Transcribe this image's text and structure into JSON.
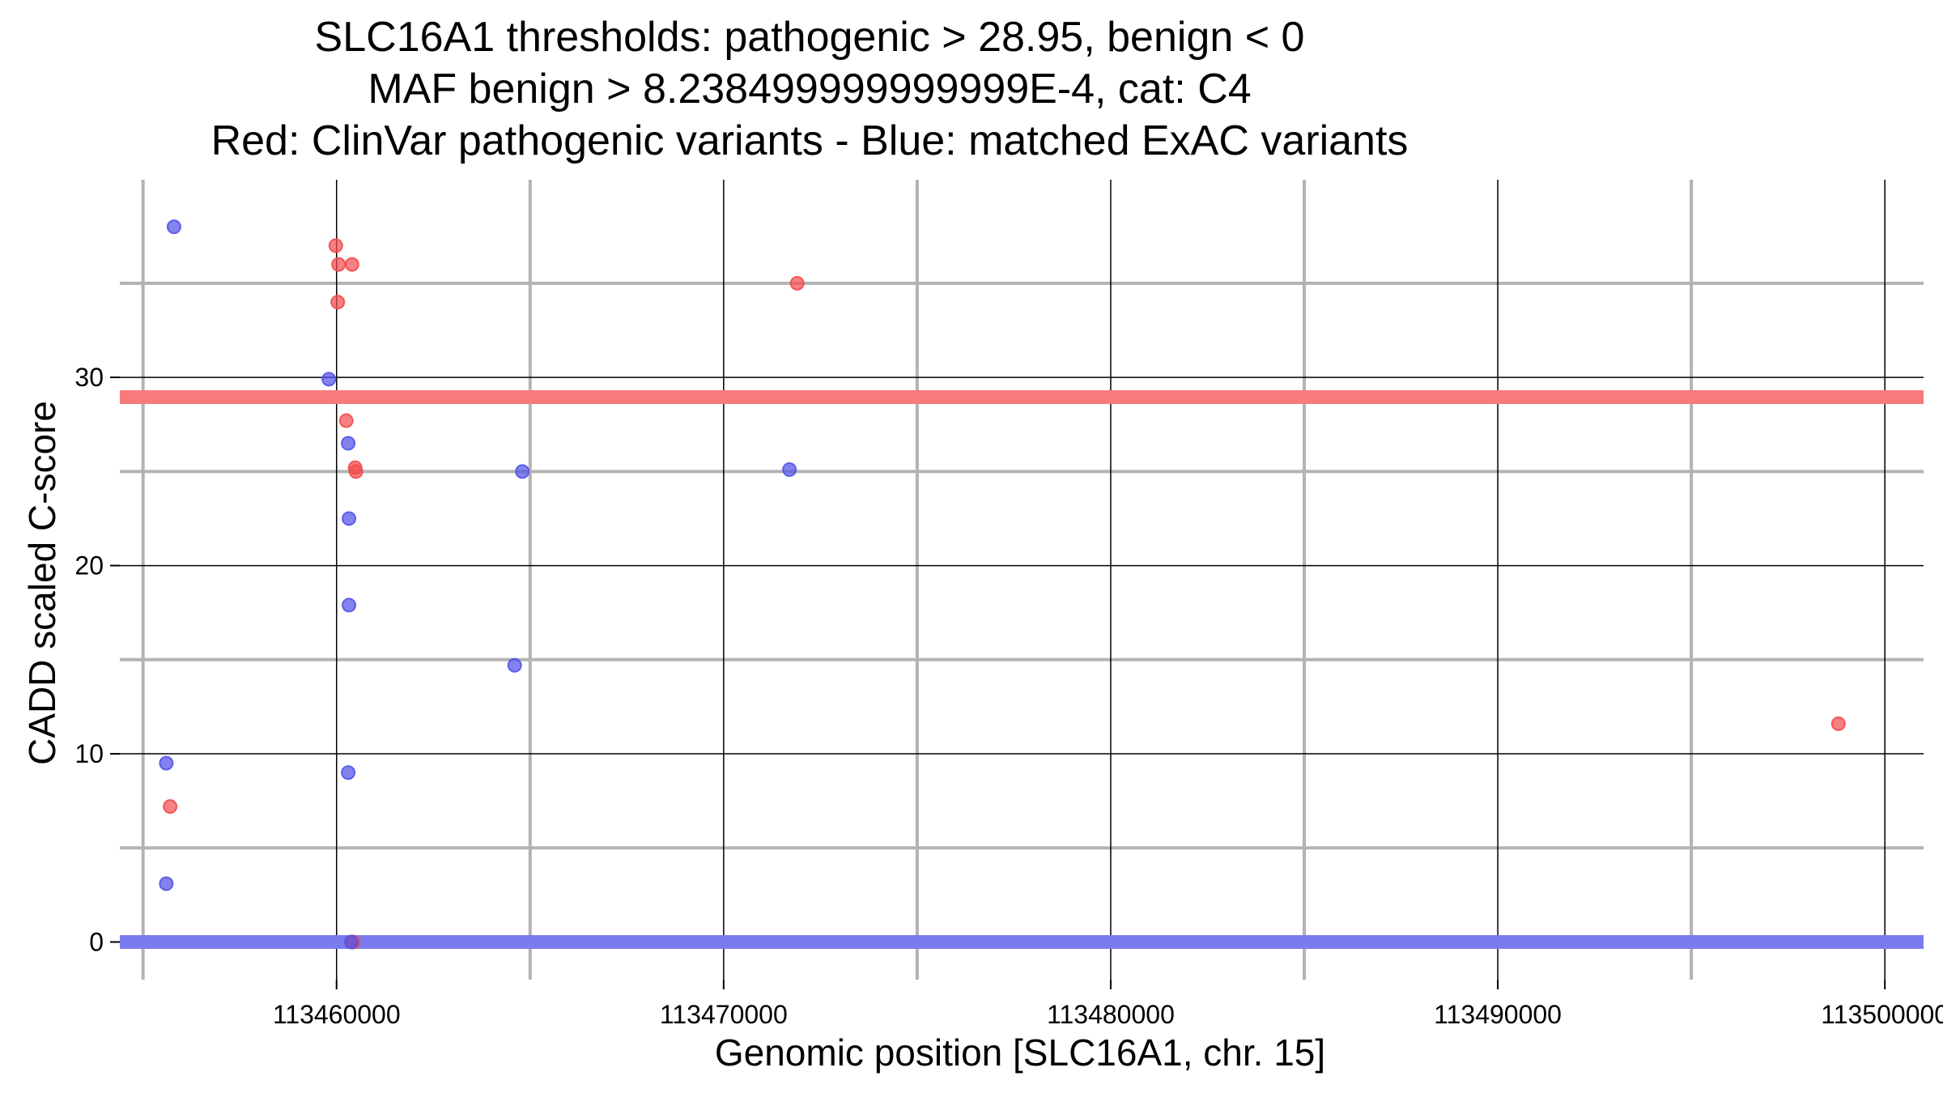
{
  "chart_data": {
    "type": "scatter",
    "title_lines": [
      "SLC16A1 thresholds: pathogenic > 28.95, benign < 0",
      "MAF benign > 8.238499999999999E-4, cat: C4",
      "Red: ClinVar pathogenic variants - Blue: matched ExAC variants"
    ],
    "xlabel": "Genomic position [SLC16A1, chr. 15]",
    "ylabel": "CADD scaled C-score",
    "xlim": [
      113454400,
      113501000
    ],
    "ylim": [
      -2,
      40.5
    ],
    "x_major_ticks": [
      113460000,
      113470000,
      113480000,
      113490000,
      113500000
    ],
    "x_tick_labels": [
      "113460000",
      "113470000",
      "113480000",
      "113490000",
      "113500000"
    ],
    "x_minor_ticks": [
      113455000,
      113465000,
      113475000,
      113485000,
      113495000
    ],
    "y_major_ticks": [
      0,
      10,
      20,
      30
    ],
    "y_tick_labels": [
      "0",
      "10",
      "20",
      "30"
    ],
    "y_minor_ticks": [
      5,
      15,
      25,
      35
    ],
    "thresholds": [
      {
        "name": "pathogenic",
        "value": 28.95,
        "color": "#f87b7b"
      },
      {
        "name": "benign",
        "value": 0,
        "color": "#7b7bf0"
      }
    ],
    "series": [
      {
        "name": "ClinVar pathogenic",
        "color": "#f24d4d",
        "points": [
          {
            "x": 113459980,
            "y": 37.0
          },
          {
            "x": 113460050,
            "y": 36.0
          },
          {
            "x": 113460400,
            "y": 36.0
          },
          {
            "x": 113460030,
            "y": 34.0
          },
          {
            "x": 113460250,
            "y": 27.7
          },
          {
            "x": 113460480,
            "y": 25.2
          },
          {
            "x": 113460500,
            "y": 25.0
          },
          {
            "x": 113455700,
            "y": 7.2
          },
          {
            "x": 113471900,
            "y": 35.0
          },
          {
            "x": 113498800,
            "y": 11.6
          },
          {
            "x": 113460430,
            "y": 0.0
          }
        ]
      },
      {
        "name": "matched ExAC",
        "color": "#5353e8",
        "points": [
          {
            "x": 113455800,
            "y": 38.0
          },
          {
            "x": 113459800,
            "y": 29.9
          },
          {
            "x": 113460300,
            "y": 26.5
          },
          {
            "x": 113460320,
            "y": 22.5
          },
          {
            "x": 113460320,
            "y": 17.9
          },
          {
            "x": 113460300,
            "y": 9.0
          },
          {
            "x": 113455600,
            "y": 9.5
          },
          {
            "x": 113455600,
            "y": 3.1
          },
          {
            "x": 113464800,
            "y": 25.0
          },
          {
            "x": 113464600,
            "y": 14.7
          },
          {
            "x": 113471700,
            "y": 25.1
          },
          {
            "x": 113460380,
            "y": 0.0
          }
        ]
      }
    ]
  }
}
